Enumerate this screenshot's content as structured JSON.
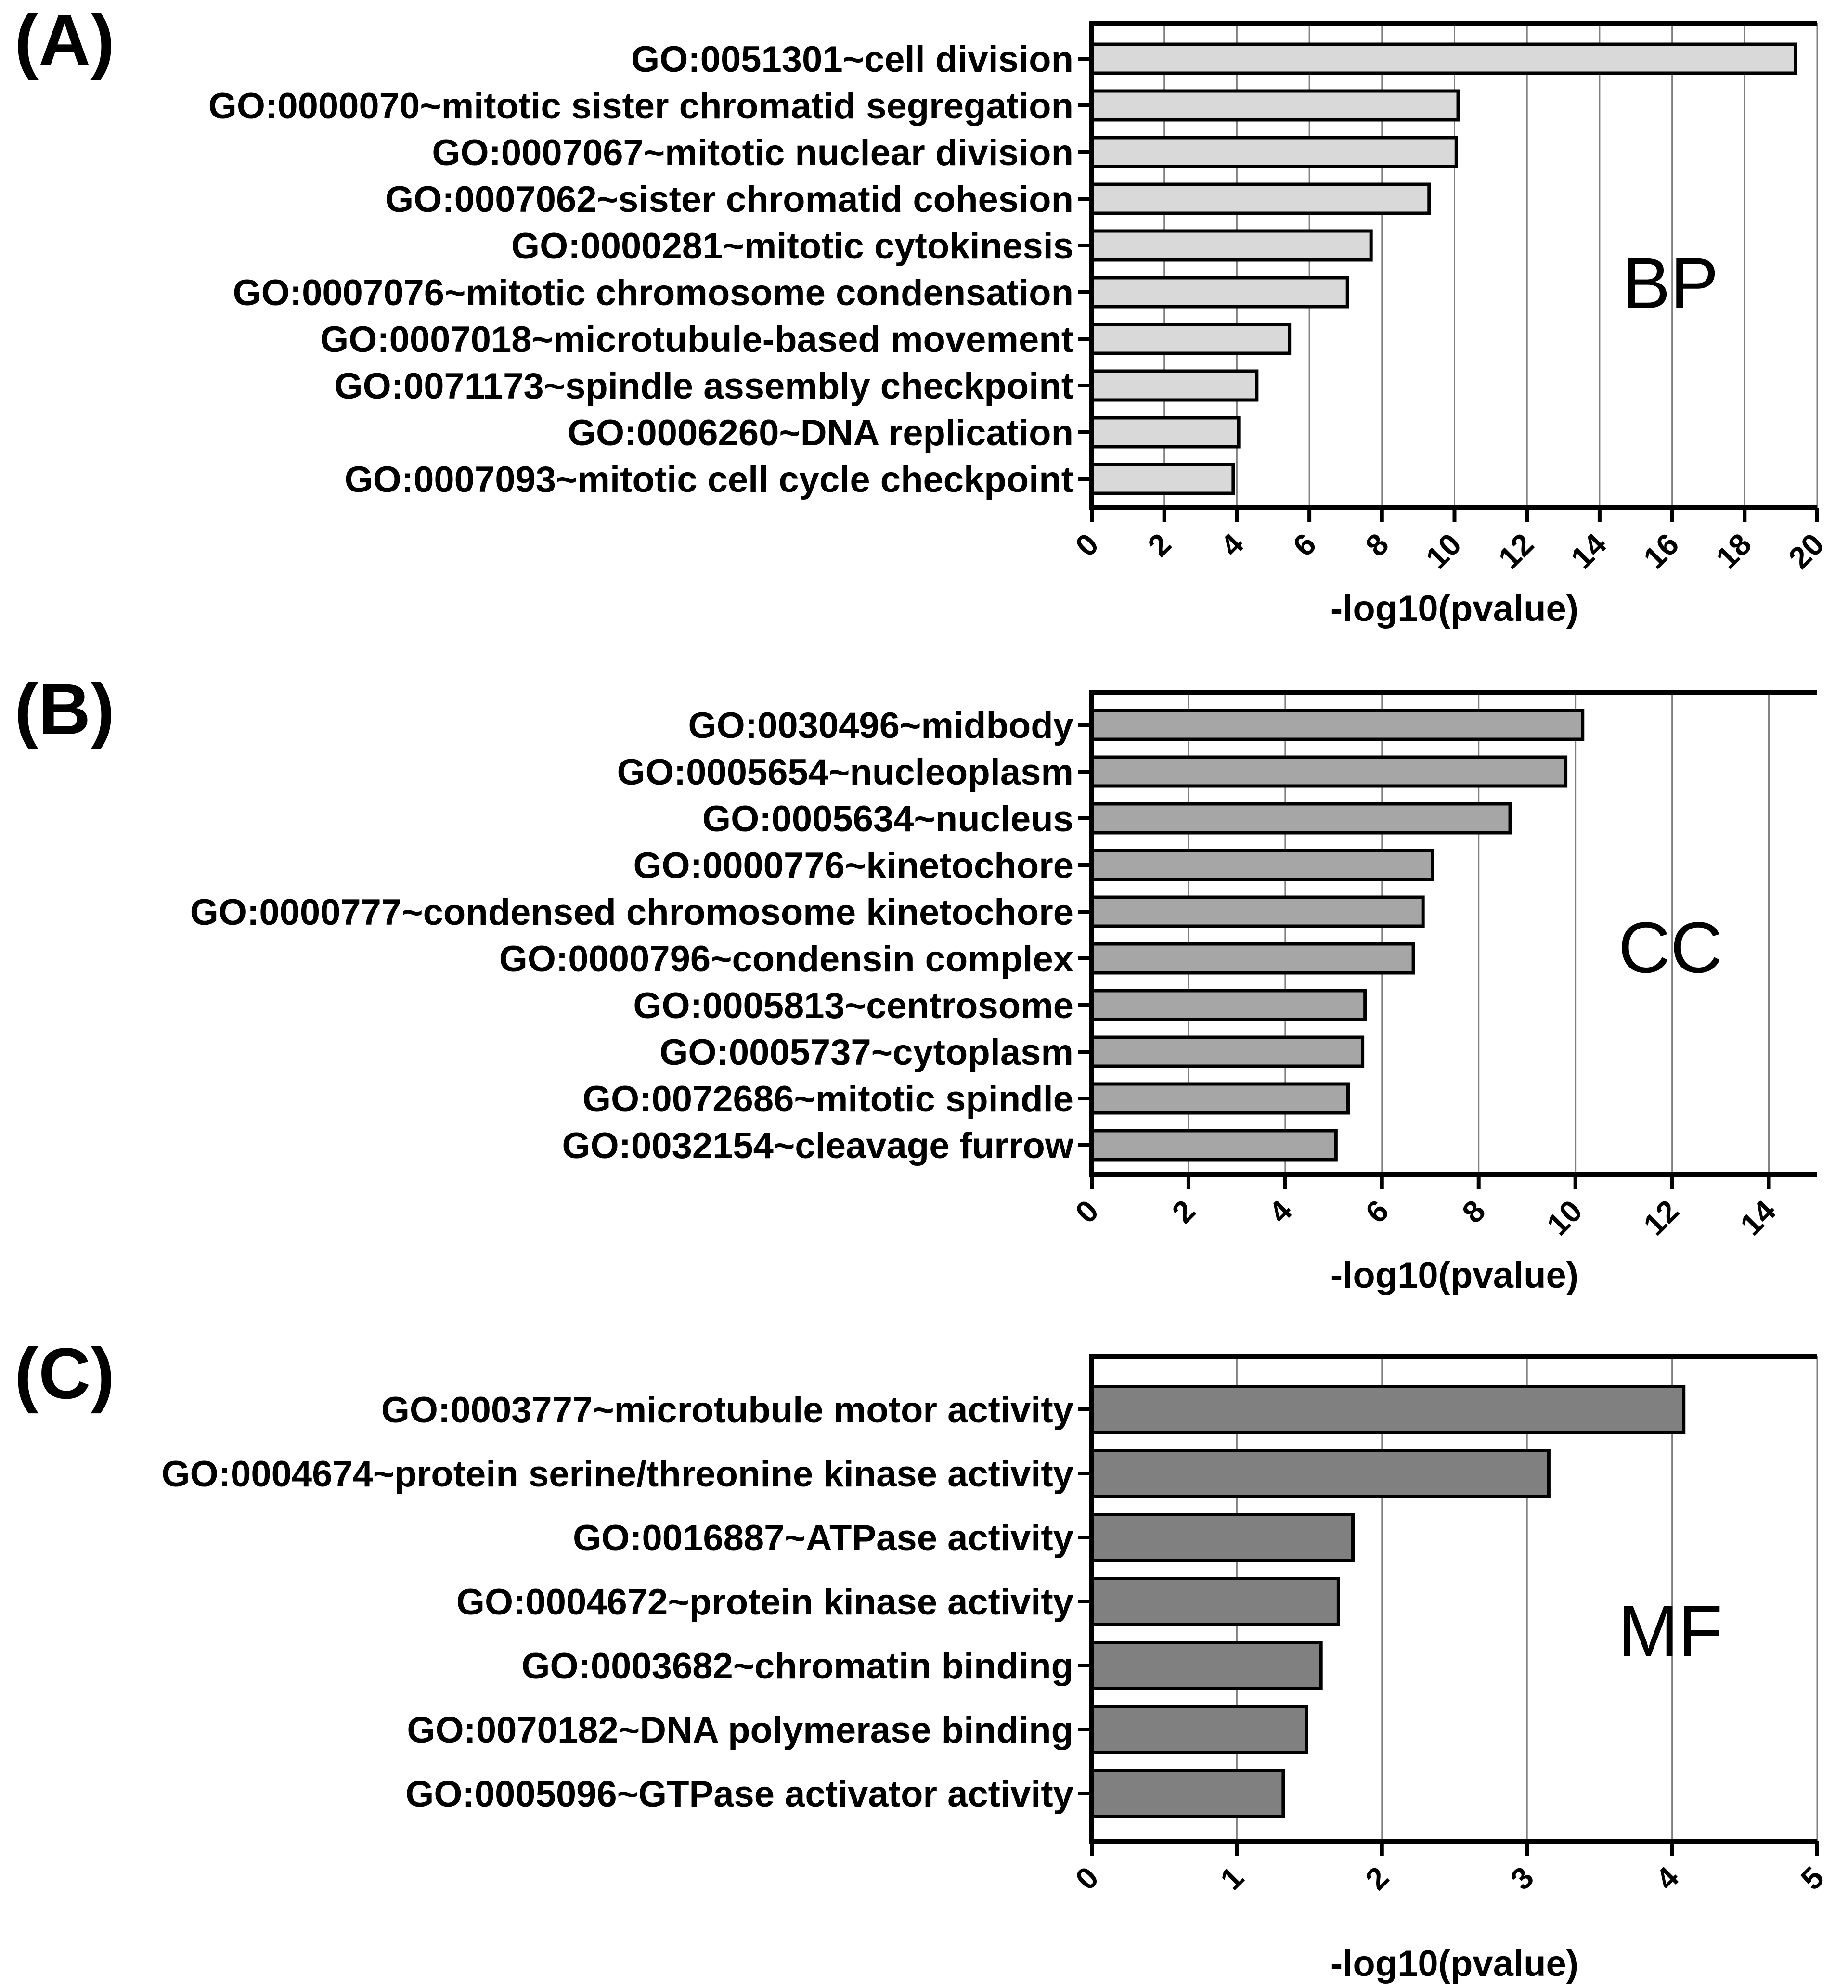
{
  "colors": {
    "bp_bar": "#d9d9d9",
    "cc_bar": "#a6a6a6",
    "mf_bar": "#808080",
    "axis": "#000000",
    "grid": "#808080"
  },
  "chart_data": [
    {
      "type": "bar",
      "orientation": "horizontal",
      "panel_label": "(A)",
      "category_tag": "BP",
      "xlabel": "-log10(pvalue)",
      "ylabel": "",
      "xlim": [
        0,
        20
      ],
      "ticks": [
        0,
        2,
        4,
        6,
        8,
        10,
        12,
        14,
        16,
        18,
        20
      ],
      "tick_labels": [
        "0",
        "2",
        "4",
        "6",
        "8",
        "10",
        "12",
        "14",
        "16",
        "18",
        "20"
      ],
      "grid": true,
      "categories": [
        "GO:0051301~cell division",
        "GO:0000070~mitotic sister chromatid segregation",
        "GO:0007067~mitotic nuclear division",
        "GO:0007062~sister chromatid cohesion",
        "GO:0000281~mitotic cytokinesis",
        "GO:0007076~mitotic chromosome condensation",
        "GO:0007018~microtubule-based movement",
        "GO:0071173~spindle assembly checkpoint",
        "GO:0006260~DNA replication",
        "GO:0007093~mitotic cell cycle checkpoint"
      ],
      "values": [
        19.4,
        10.1,
        10.05,
        9.3,
        7.7,
        7.05,
        5.45,
        4.55,
        4.05,
        3.9
      ]
    },
    {
      "type": "bar",
      "orientation": "horizontal",
      "panel_label": "(B)",
      "category_tag": "CC",
      "xlabel": "-log10(pvalue)",
      "ylabel": "",
      "xlim": [
        0,
        15
      ],
      "ticks": [
        0,
        2,
        4,
        6,
        8,
        10,
        12,
        14
      ],
      "tick_labels": [
        "0",
        "2",
        "4",
        "6",
        "8",
        "10",
        "12",
        "14"
      ],
      "grid": true,
      "categories": [
        "GO:0030496~midbody",
        "GO:0005654~nucleoplasm",
        "GO:0005634~nucleus",
        "GO:0000776~kinetochore",
        "GO:0000777~condensed chromosome kinetochore",
        "GO:0000796~condensin complex",
        "GO:0005813~centrosome",
        "GO:0005737~cytoplasm",
        "GO:0072686~mitotic spindle",
        "GO:0032154~cleavage furrow"
      ],
      "values": [
        10.15,
        9.8,
        8.65,
        7.05,
        6.85,
        6.65,
        5.65,
        5.6,
        5.3,
        5.05
      ]
    },
    {
      "type": "bar",
      "orientation": "horizontal",
      "panel_label": "(C)",
      "category_tag": "MF",
      "xlabel": "-log10(pvalue)",
      "ylabel": "",
      "xlim": [
        0,
        5
      ],
      "ticks": [
        0,
        1,
        2,
        3,
        4,
        5
      ],
      "tick_labels": [
        "0",
        "1",
        "2",
        "3",
        "4",
        "5"
      ],
      "grid": true,
      "categories": [
        "GO:0003777~microtubule motor activity",
        "GO:0004674~protein serine/threonine kinase activity",
        "GO:0016887~ATPase activity",
        "GO:0004672~protein kinase activity",
        "GO:0003682~chromatin binding",
        "GO:0070182~DNA polymerase binding",
        "GO:0005096~GTPase activator activity"
      ],
      "values": [
        4.08,
        3.15,
        1.8,
        1.7,
        1.58,
        1.48,
        1.32
      ]
    }
  ]
}
